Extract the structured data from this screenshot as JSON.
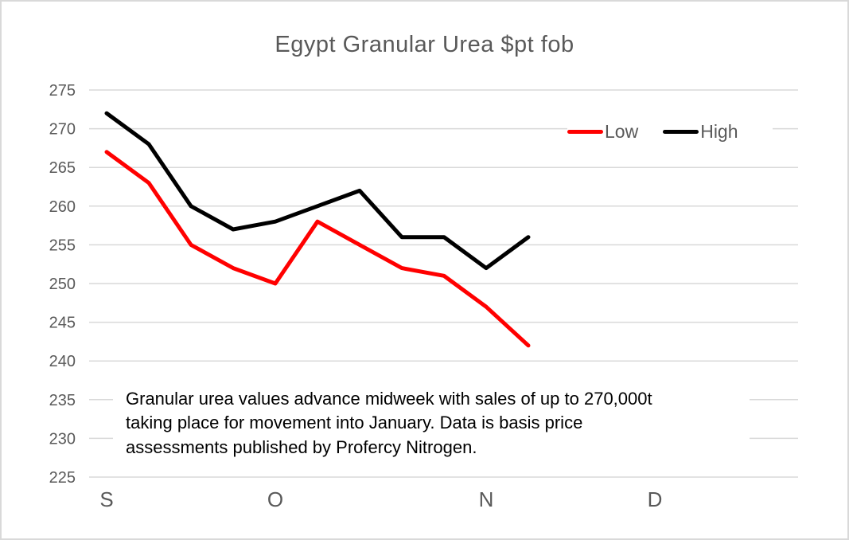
{
  "chart_data": {
    "type": "line",
    "title": "Egypt Granular Urea $pt fob",
    "x_axis": {
      "tick_labels": [
        "S",
        "O",
        "N",
        "D"
      ],
      "tick_category_index": [
        1,
        5,
        10,
        14
      ],
      "total_categories": 17,
      "note": "weekly categories, months Sep-Dec"
    },
    "y_axis": {
      "min": 225,
      "max": 275,
      "step": 5,
      "tick_labels": [
        "275",
        "270",
        "265",
        "260",
        "255",
        "250",
        "245",
        "240",
        "235",
        "230",
        "225"
      ]
    },
    "series": [
      {
        "name": "Low",
        "color": "#FF0000",
        "values": [
          267,
          263,
          255,
          252,
          250,
          258,
          255,
          252,
          251,
          247,
          242
        ]
      },
      {
        "name": "High",
        "color": "#000000",
        "values": [
          272,
          268,
          260,
          257,
          258,
          260,
          262,
          256,
          256,
          252,
          256
        ]
      }
    ],
    "grid": "horizontal",
    "gridline_color": "#D9D9D9",
    "legend_position": "inside-top-right"
  },
  "annotation": {
    "lines": [
      "Granular urea values advance midweek with sales of up to 270,000t",
      "taking place for movement into January. Data is basis price",
      "assessments published by Profercy Nitrogen."
    ]
  }
}
